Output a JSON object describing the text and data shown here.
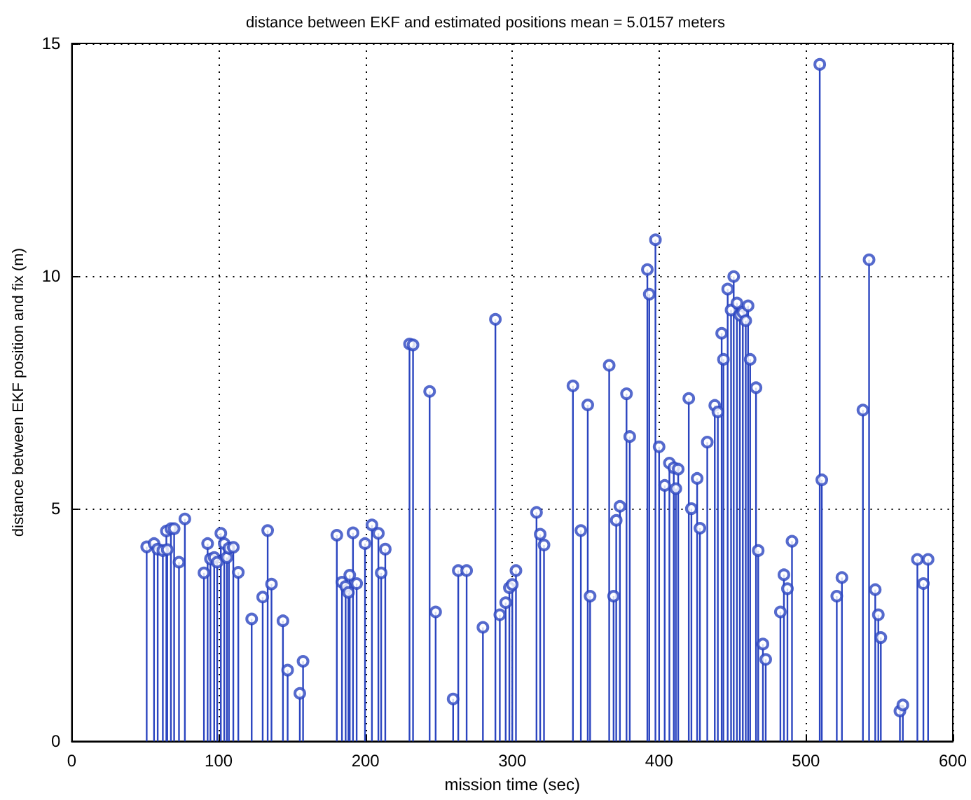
{
  "chart_data": {
    "type": "lollipop",
    "title": "distance between EKF and estimated positions mean = 5.0157 meters",
    "xlabel": "mission time (sec)",
    "ylabel": "distance between EKF position and fix (m)",
    "x": [
      51,
      56,
      58.5,
      62,
      64.4,
      65,
      67.5,
      69.7,
      73,
      77,
      90,
      92.5,
      94.4,
      97,
      99,
      101.5,
      103.8,
      105.6,
      107,
      110,
      113.4,
      122.5,
      130,
      133.4,
      136,
      143.8,
      147,
      155.3,
      157.5,
      180.5,
      184,
      186.5,
      188.4,
      189.3,
      191.5,
      194,
      199.7,
      204.4,
      208.8,
      210.7,
      213.5,
      230,
      232.4,
      243.7,
      247.8,
      259.7,
      263.2,
      268.9,
      280,
      288.5,
      291.5,
      295.5,
      298,
      300,
      302.5,
      316.5,
      319,
      321.6,
      341.3,
      346.7,
      351.4,
      353,
      366,
      369,
      370.8,
      373.3,
      377.8,
      380,
      392,
      393.3,
      397.5,
      400,
      403.8,
      407,
      410,
      411.4,
      413,
      420.2,
      422,
      425.9,
      427.8,
      432.8,
      437.9,
      440,
      442.6,
      443.8,
      446.7,
      449,
      450.8,
      453,
      455,
      457,
      459,
      460.6,
      462,
      466,
      467.5,
      470.7,
      472.6,
      482.6,
      485,
      487.4,
      490.5,
      509.4,
      510.8,
      521,
      524.5,
      538.8,
      543,
      547.2,
      549.3,
      551,
      564,
      566,
      575.9,
      580,
      583.2
    ],
    "values": [
      4.18,
      4.25,
      4.13,
      4.1,
      4.52,
      4.12,
      4.57,
      4.57,
      3.85,
      4.78,
      3.62,
      4.25,
      3.92,
      3.95,
      3.85,
      4.47,
      4.25,
      3.95,
      4.15,
      4.17,
      3.63,
      2.63,
      3.1,
      4.53,
      3.38,
      2.59,
      1.53,
      1.03,
      1.72,
      4.43,
      3.42,
      3.33,
      3.2,
      3.57,
      4.48,
      3.39,
      4.25,
      4.65,
      4.47,
      3.62,
      4.13,
      8.54,
      8.52,
      7.52,
      2.78,
      0.91,
      3.67,
      3.67,
      2.45,
      9.07,
      2.72,
      2.98,
      3.3,
      3.37,
      3.67,
      4.92,
      4.45,
      4.22,
      7.64,
      4.53,
      7.23,
      3.12,
      8.08,
      3.12,
      4.75,
      5.05,
      7.47,
      6.55,
      10.14,
      9.61,
      10.78,
      6.33,
      5.5,
      5.98,
      5.88,
      5.43,
      5.85,
      7.37,
      5.0,
      5.65,
      4.58,
      6.43,
      7.22,
      7.08,
      8.77,
      8.21,
      9.72,
      9.27,
      9.99,
      9.42,
      9.16,
      9.22,
      9.04,
      9.36,
      8.21,
      7.6,
      4.1,
      2.09,
      1.76,
      2.78,
      3.58,
      3.28,
      4.3,
      14.55,
      5.62,
      3.12,
      3.52,
      7.12,
      10.35,
      3.26,
      2.72,
      2.23,
      0.65,
      0.78,
      3.91,
      3.39,
      3.91
    ],
    "color": "#2b45c0",
    "marker": "circle",
    "grid": true,
    "xlim": [
      0,
      600
    ],
    "xticks": [
      0,
      100,
      200,
      300,
      400,
      500,
      600
    ],
    "ylim": [
      0,
      15
    ],
    "yticks": [
      0,
      5,
      10,
      15
    ]
  }
}
